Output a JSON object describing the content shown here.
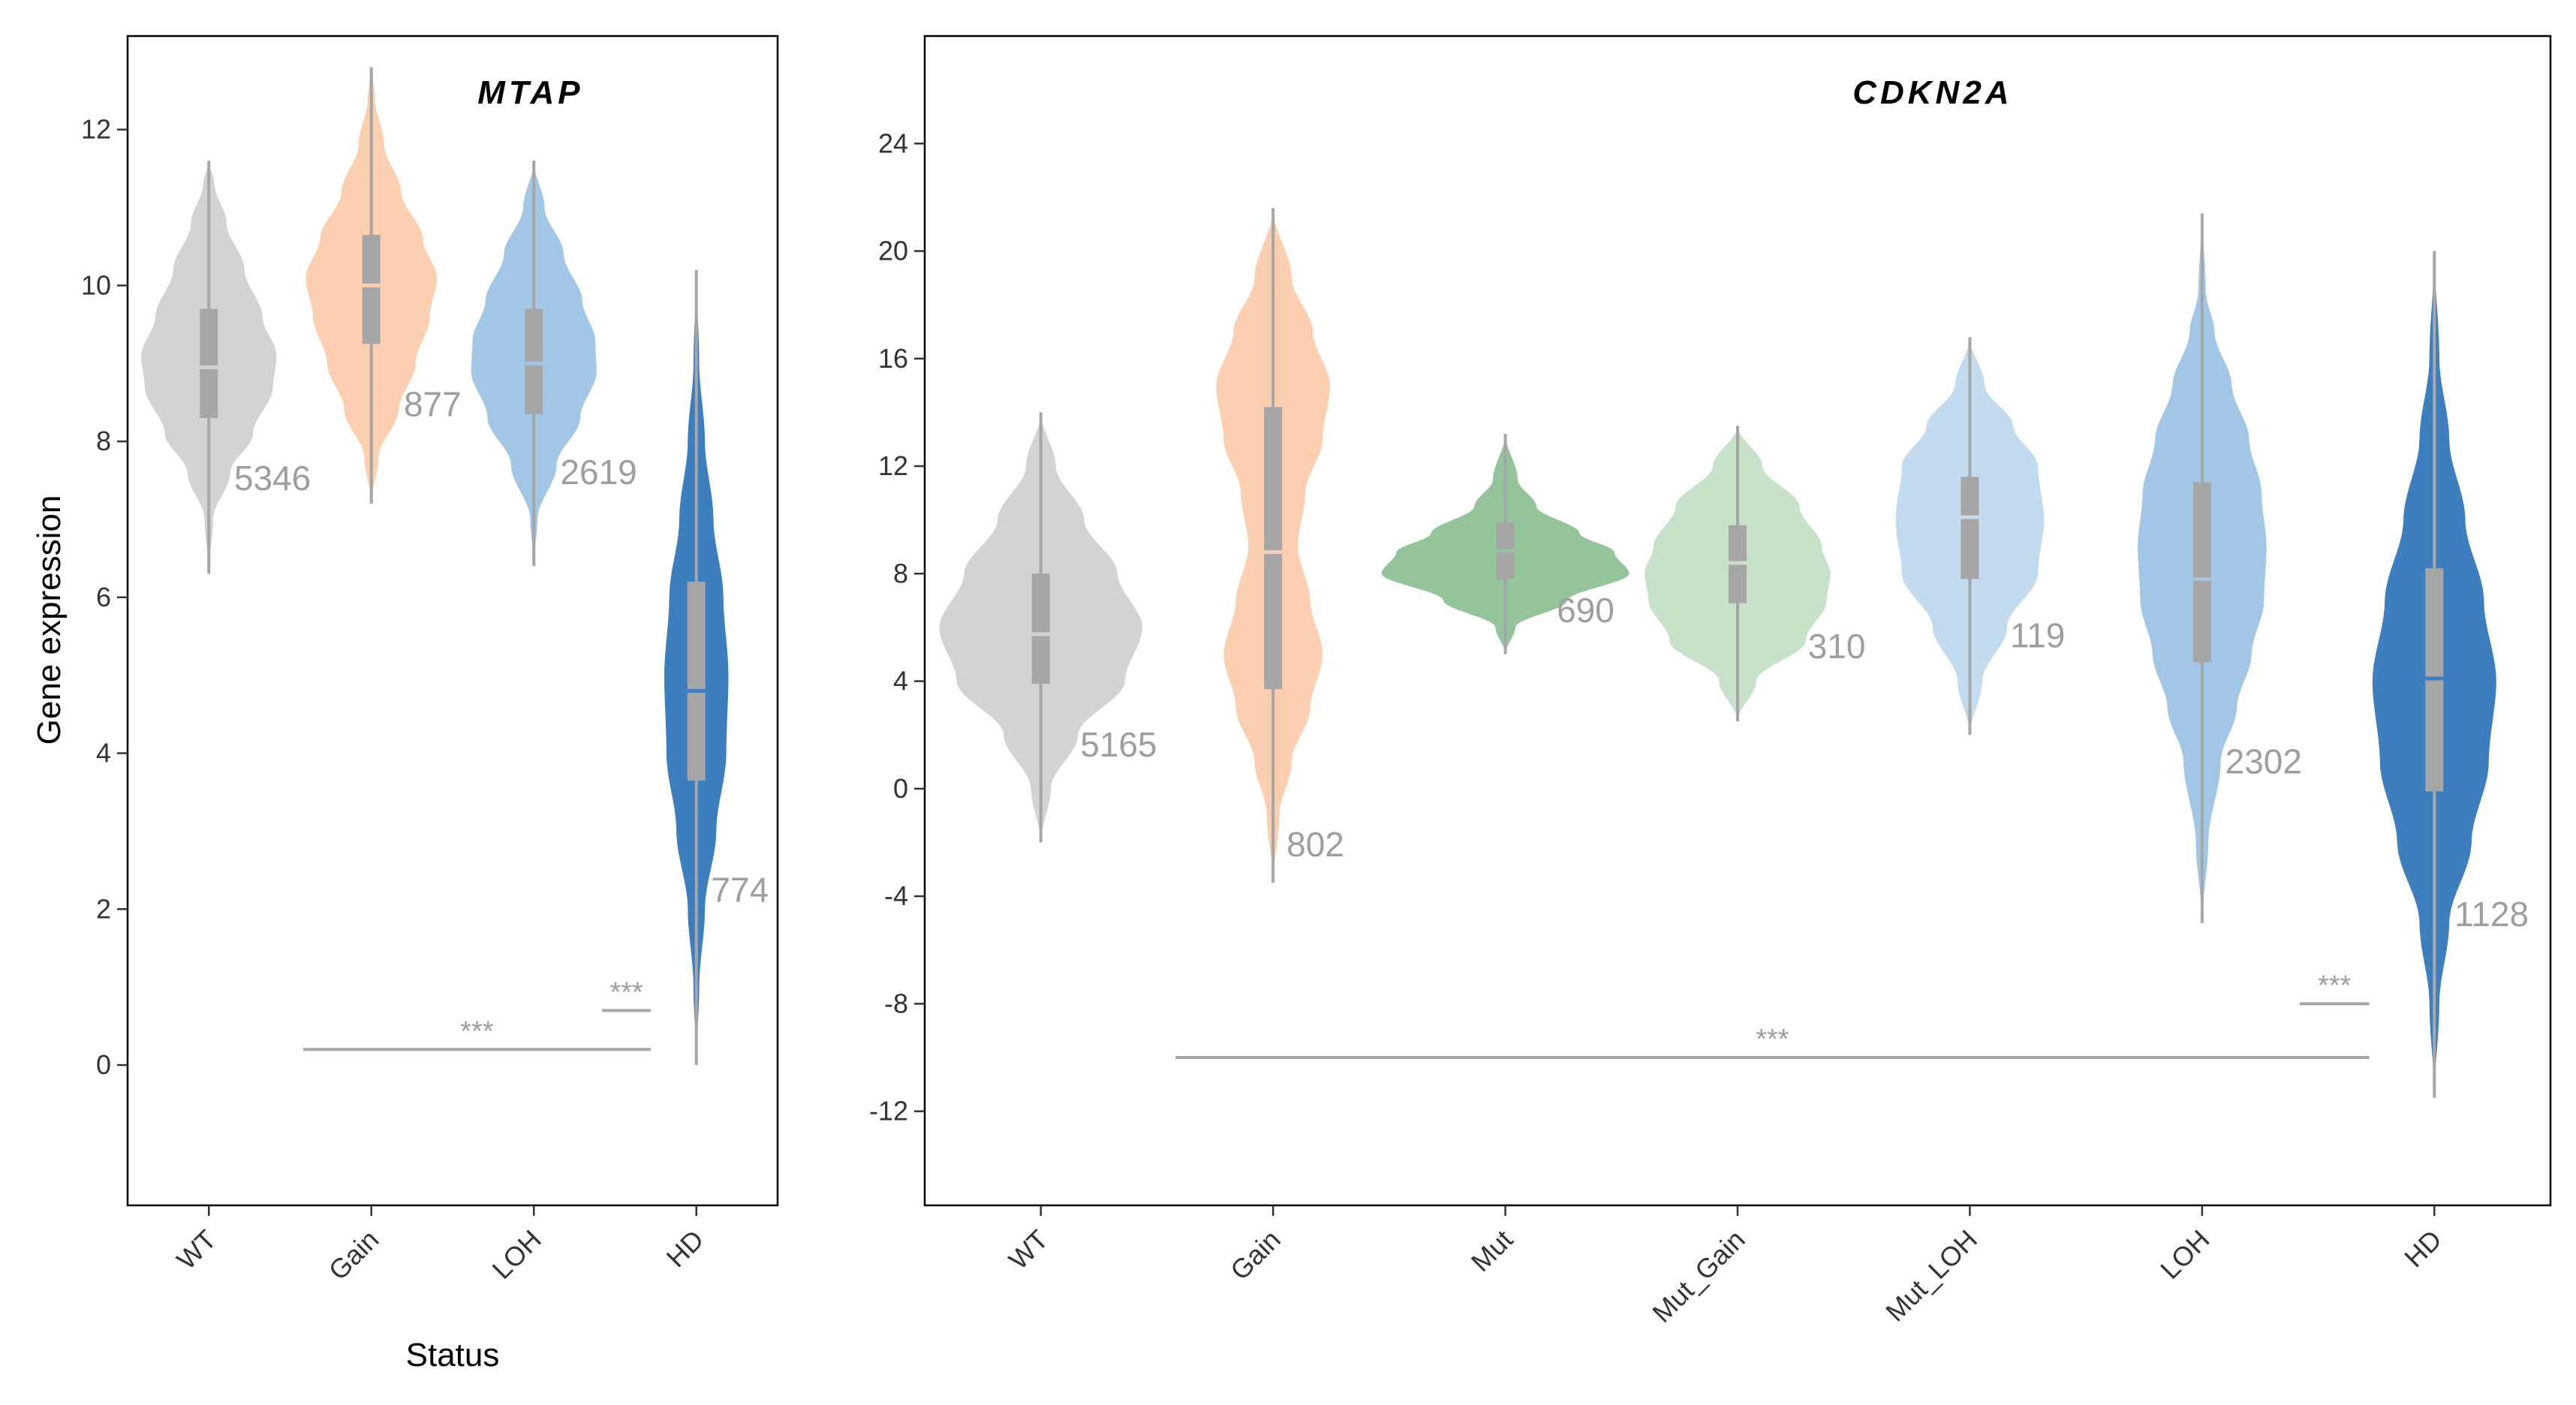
{
  "figure": {
    "ylabel": "Gene expression",
    "xlabel": "Status"
  },
  "chart_data": [
    {
      "type": "violin",
      "title": "MTAP",
      "xlabel": "Status",
      "ylabel": "Gene expression",
      "ylim": [
        -1.8,
        13.2
      ],
      "yticks": [
        0,
        2,
        4,
        6,
        8,
        10,
        12
      ],
      "grid": false,
      "categories": [
        "WT",
        "Gain",
        "LOH",
        "HD"
      ],
      "colors": [
        "#d3d3d3",
        "#fbcfb0",
        "#a2c7e6",
        "#3d7ebf"
      ],
      "counts": [
        "5346",
        "877",
        "2619",
        "774"
      ],
      "violins": [
        {
          "min": 6.3,
          "max": 11.6,
          "q1": 8.3,
          "median": 8.95,
          "q3": 9.7,
          "profile": [
            [
              6.3,
              0.0
            ],
            [
              7.0,
              0.06
            ],
            [
              7.6,
              0.3
            ],
            [
              8.1,
              0.62
            ],
            [
              8.7,
              0.9
            ],
            [
              9.1,
              0.95
            ],
            [
              9.6,
              0.75
            ],
            [
              10.2,
              0.5
            ],
            [
              10.8,
              0.25
            ],
            [
              11.3,
              0.08
            ],
            [
              11.6,
              0.0
            ]
          ]
        },
        {
          "min": 7.2,
          "max": 12.8,
          "q1": 9.25,
          "median": 10.0,
          "q3": 10.65,
          "profile": [
            [
              7.2,
              0.0
            ],
            [
              7.8,
              0.1
            ],
            [
              8.4,
              0.38
            ],
            [
              9.0,
              0.62
            ],
            [
              9.6,
              0.82
            ],
            [
              10.1,
              0.92
            ],
            [
              10.6,
              0.72
            ],
            [
              11.2,
              0.42
            ],
            [
              11.8,
              0.18
            ],
            [
              12.4,
              0.05
            ],
            [
              12.8,
              0.0
            ]
          ]
        },
        {
          "min": 6.4,
          "max": 11.6,
          "q1": 8.35,
          "median": 9.0,
          "q3": 9.7,
          "profile": [
            [
              6.4,
              0.0
            ],
            [
              7.0,
              0.05
            ],
            [
              7.7,
              0.32
            ],
            [
              8.3,
              0.65
            ],
            [
              8.9,
              0.88
            ],
            [
              9.3,
              0.86
            ],
            [
              9.8,
              0.68
            ],
            [
              10.4,
              0.42
            ],
            [
              11.0,
              0.15
            ],
            [
              11.6,
              0.0
            ]
          ]
        },
        {
          "min": 0.0,
          "max": 10.2,
          "q1": 3.65,
          "median": 4.8,
          "q3": 6.2,
          "profile": [
            [
              0.0,
              0.0
            ],
            [
              1.0,
              0.04
            ],
            [
              2.0,
              0.12
            ],
            [
              3.0,
              0.28
            ],
            [
              4.0,
              0.42
            ],
            [
              5.0,
              0.45
            ],
            [
              6.0,
              0.38
            ],
            [
              7.0,
              0.24
            ],
            [
              8.0,
              0.12
            ],
            [
              9.0,
              0.04
            ],
            [
              10.2,
              0.0
            ]
          ]
        }
      ],
      "comparisons": [
        {
          "from": "Gain",
          "to": "LOH",
          "y": 0.2,
          "label": "***"
        },
        {
          "from": "LOH",
          "to": "LOH",
          "y": 0.7,
          "label": "***"
        }
      ]
    },
    {
      "type": "violin",
      "title": "CDKN2A",
      "xlabel": "",
      "ylabel": "",
      "ylim": [
        -15.5,
        28.0
      ],
      "yticks": [
        -12,
        -8,
        -4,
        0,
        4,
        8,
        12,
        16,
        20,
        24
      ],
      "grid": false,
      "categories": [
        "WT",
        "Gain",
        "Mut",
        "Mut_Gain",
        "Mut_LOH",
        "LOH",
        "HD"
      ],
      "colors": [
        "#d3d3d3",
        "#fbcfb0",
        "#94c49a",
        "#c7e2c8",
        "#c2dbef",
        "#a2c7e6",
        "#3d7ebf"
      ],
      "counts": [
        "5165",
        "802",
        "690",
        "310",
        "119",
        "2302",
        "1128"
      ],
      "violins": [
        {
          "min": -2.0,
          "max": 14.0,
          "q1": 3.9,
          "median": 5.75,
          "q3": 8.0,
          "profile": [
            [
              -2.0,
              0.0
            ],
            [
              0.0,
              0.08
            ],
            [
              2.0,
              0.3
            ],
            [
              4.0,
              0.68
            ],
            [
              6.0,
              0.82
            ],
            [
              8.0,
              0.62
            ],
            [
              10.0,
              0.35
            ],
            [
              12.0,
              0.12
            ],
            [
              14.0,
              0.0
            ]
          ]
        },
        {
          "min": -3.5,
          "max": 21.6,
          "q1": 3.7,
          "median": 8.8,
          "q3": 14.2,
          "profile": [
            [
              -3.5,
              0.0
            ],
            [
              -1.0,
              0.05
            ],
            [
              1.0,
              0.15
            ],
            [
              3.0,
              0.3
            ],
            [
              5.0,
              0.4
            ],
            [
              7.0,
              0.3
            ],
            [
              9.0,
              0.2
            ],
            [
              11.0,
              0.26
            ],
            [
              13.0,
              0.4
            ],
            [
              15.0,
              0.46
            ],
            [
              17.0,
              0.32
            ],
            [
              19.0,
              0.15
            ],
            [
              21.6,
              0.0
            ]
          ]
        },
        {
          "min": 5.0,
          "max": 13.2,
          "q1": 7.8,
          "median": 8.85,
          "q3": 9.9,
          "profile": [
            [
              5.0,
              0.0
            ],
            [
              6.0,
              0.08
            ],
            [
              7.0,
              0.5
            ],
            [
              8.0,
              1.0
            ],
            [
              8.8,
              0.88
            ],
            [
              9.5,
              0.6
            ],
            [
              10.5,
              0.25
            ],
            [
              11.5,
              0.1
            ],
            [
              13.2,
              0.0
            ]
          ]
        },
        {
          "min": 2.5,
          "max": 13.5,
          "q1": 6.9,
          "median": 8.4,
          "q3": 9.8,
          "profile": [
            [
              2.5,
              0.0
            ],
            [
              4.0,
              0.15
            ],
            [
              5.5,
              0.55
            ],
            [
              7.0,
              0.72
            ],
            [
              8.0,
              0.75
            ],
            [
              9.0,
              0.68
            ],
            [
              10.5,
              0.5
            ],
            [
              12.0,
              0.2
            ],
            [
              13.5,
              0.0
            ]
          ]
        },
        {
          "min": 2.0,
          "max": 16.8,
          "q1": 7.8,
          "median": 10.1,
          "q3": 11.6,
          "profile": [
            [
              2.0,
              0.0
            ],
            [
              4.0,
              0.1
            ],
            [
              6.0,
              0.3
            ],
            [
              8.0,
              0.55
            ],
            [
              10.0,
              0.6
            ],
            [
              12.0,
              0.55
            ],
            [
              13.5,
              0.35
            ],
            [
              15.0,
              0.12
            ],
            [
              16.8,
              0.0
            ]
          ]
        },
        {
          "min": -5.0,
          "max": 21.4,
          "q1": 4.7,
          "median": 7.8,
          "q3": 11.4,
          "profile": [
            [
              -5.0,
              0.0
            ],
            [
              -2.0,
              0.05
            ],
            [
              1.0,
              0.15
            ],
            [
              3.0,
              0.28
            ],
            [
              5.0,
              0.4
            ],
            [
              7.0,
              0.5
            ],
            [
              9.0,
              0.52
            ],
            [
              11.0,
              0.48
            ],
            [
              13.0,
              0.38
            ],
            [
              15.0,
              0.24
            ],
            [
              17.0,
              0.1
            ],
            [
              18.5,
              0.03
            ],
            [
              21.4,
              0.0
            ]
          ]
        },
        {
          "min": -11.5,
          "max": 20.0,
          "q1": -0.1,
          "median": 4.1,
          "q3": 8.2,
          "profile": [
            [
              -11.5,
              0.0
            ],
            [
              -8.0,
              0.04
            ],
            [
              -5.0,
              0.12
            ],
            [
              -2.0,
              0.3
            ],
            [
              1.0,
              0.44
            ],
            [
              4.0,
              0.5
            ],
            [
              7.0,
              0.4
            ],
            [
              10.0,
              0.25
            ],
            [
              13.0,
              0.12
            ],
            [
              16.0,
              0.04
            ],
            [
              20.0,
              0.0
            ]
          ]
        }
      ],
      "comparisons": [
        {
          "from": "Gain",
          "to": "LOH",
          "y": -10.0,
          "label": "***"
        },
        {
          "from": "LOH",
          "to": "LOH",
          "y": -8.0,
          "label": "***"
        }
      ]
    }
  ]
}
